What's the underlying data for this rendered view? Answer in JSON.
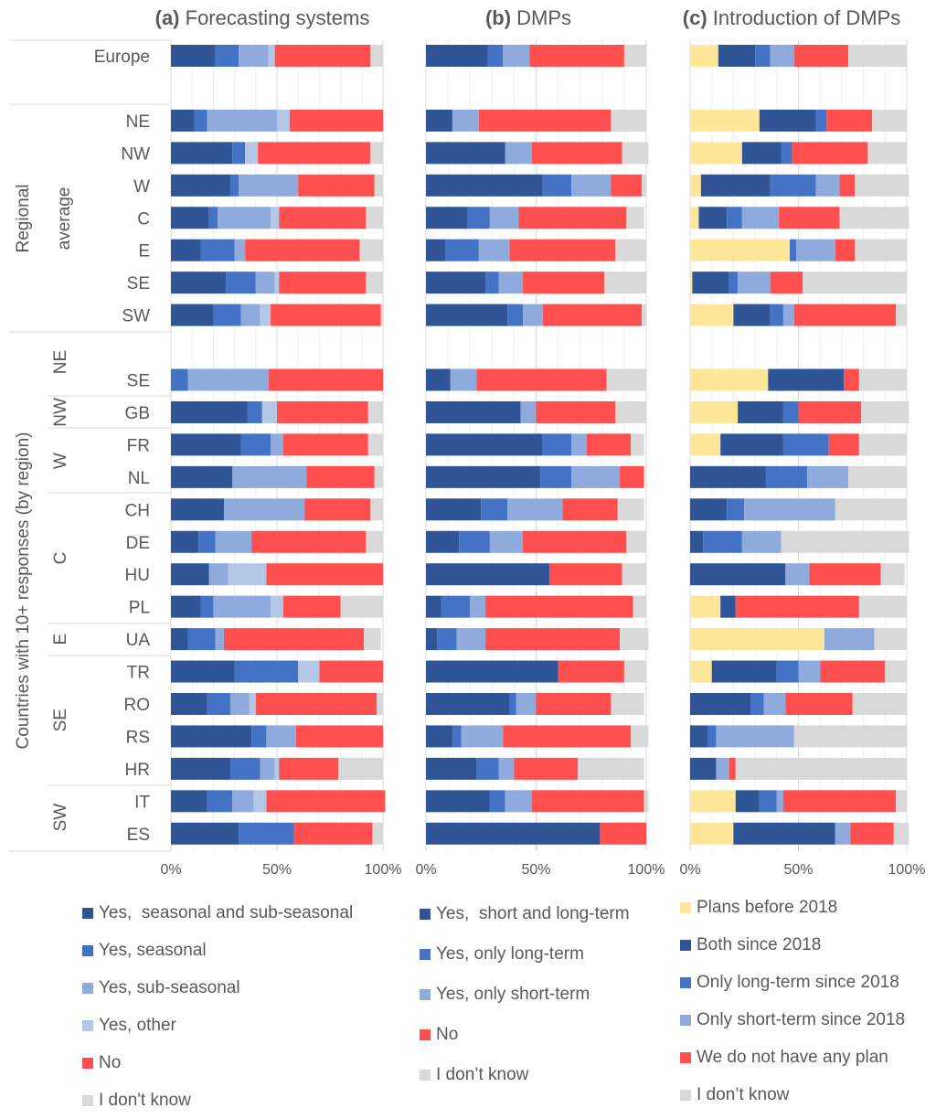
{
  "chart_data": [
    {
      "type": "bar",
      "orientation": "horizontal",
      "stacked": "percent",
      "title_prefix": "(a)",
      "title": "Forecasting systems",
      "xlim": [
        0,
        100
      ],
      "xticks": [
        "0%",
        "50%",
        "100%"
      ],
      "grid": true,
      "legend_position": "bottom",
      "series": [
        {
          "name": "Yes,  seasonal and sub-seasonal",
          "color": "#2F5597",
          "values": [
            21,
            11,
            29,
            28,
            18,
            14,
            26,
            20,
            0,
            36,
            33,
            29,
            25,
            13,
            18,
            14,
            8,
            30,
            17,
            38,
            28,
            17,
            32
          ]
        },
        {
          "name": "Yes, seasonal",
          "color": "#4472C4",
          "values": [
            11,
            6,
            6,
            4,
            4,
            16,
            14,
            13,
            8,
            7,
            14,
            0,
            0,
            8,
            0,
            6,
            13,
            30,
            11,
            7,
            14,
            12,
            26
          ]
        },
        {
          "name": "Yes, sub-seasonal",
          "color": "#8FAADC",
          "values": [
            14,
            33,
            0,
            28,
            25,
            5,
            9,
            9,
            38,
            0,
            6,
            35,
            38,
            17,
            9,
            27,
            4,
            0,
            9,
            14,
            7,
            10,
            0
          ]
        },
        {
          "name": "Yes, other",
          "color": "#B4C7E7",
          "values": [
            3,
            6,
            6,
            0,
            4,
            0,
            2,
            5,
            0,
            7,
            0,
            0,
            0,
            0,
            18,
            6,
            0,
            10,
            3,
            0,
            2,
            6,
            0
          ]
        },
        {
          "name": "No",
          "color": "#FF4F4F",
          "values": [
            45,
            44,
            53,
            36,
            41,
            54,
            41,
            52,
            54,
            43,
            40,
            32,
            31,
            54,
            55,
            27,
            66,
            30,
            57,
            41,
            28,
            56,
            37
          ]
        },
        {
          "name": "I don't know",
          "color": "#D9D9D9",
          "values": [
            6,
            0,
            6,
            4,
            8,
            11,
            8,
            1,
            0,
            7,
            7,
            4,
            6,
            8,
            0,
            20,
            8,
            0,
            3,
            0,
            21,
            0,
            5
          ]
        }
      ]
    },
    {
      "type": "bar",
      "orientation": "horizontal",
      "stacked": "percent",
      "title_prefix": "(b)",
      "title": "DMPs",
      "xlim": [
        0,
        100
      ],
      "xticks": [
        "0%",
        "50%",
        "100%"
      ],
      "grid": true,
      "legend_position": "bottom",
      "series": [
        {
          "name": "Yes,  short and long-term",
          "color": "#2F5597",
          "values": [
            28,
            12,
            36,
            53,
            19,
            9,
            27,
            37,
            11,
            43,
            53,
            52,
            25,
            15,
            56,
            7,
            5,
            60,
            38,
            12,
            23,
            29,
            79
          ]
        },
        {
          "name": "Yes, only long-term",
          "color": "#4472C4",
          "values": [
            7,
            0,
            0,
            13,
            10,
            15,
            6,
            7,
            0,
            0,
            13,
            14,
            12,
            14,
            0,
            13,
            9,
            0,
            3,
            4,
            10,
            7,
            0
          ]
        },
        {
          "name": "Yes, only short-term",
          "color": "#8FAADC",
          "values": [
            12,
            12,
            12,
            18,
            13,
            14,
            11,
            9,
            12,
            7,
            7,
            22,
            25,
            15,
            0,
            7,
            13,
            0,
            9,
            19,
            7,
            12,
            0
          ]
        },
        {
          "name": "No",
          "color": "#FF4F4F",
          "values": [
            43,
            60,
            41,
            14,
            49,
            48,
            37,
            45,
            59,
            36,
            20,
            11,
            25,
            47,
            33,
            67,
            61,
            30,
            34,
            58,
            29,
            51,
            21
          ]
        },
        {
          "name": "I don’t know",
          "color": "#D9D9D9",
          "values": [
            10,
            16,
            12,
            2,
            8,
            14,
            19,
            2,
            18,
            14,
            6,
            0,
            12,
            9,
            11,
            6,
            13,
            10,
            15,
            8,
            30,
            2,
            0
          ]
        }
      ]
    },
    {
      "type": "bar",
      "orientation": "horizontal",
      "stacked": "percent",
      "title_prefix": "(c)",
      "title": "Introduction of DMPs",
      "xlim": [
        0,
        100
      ],
      "xticks": [
        "0%",
        "50%",
        "100%"
      ],
      "grid": true,
      "legend_position": "bottom",
      "series": [
        {
          "name": "Plans before 2018",
          "color": "#FFE699",
          "values": [
            13,
            32,
            24,
            5,
            4,
            46,
            1,
            20,
            36,
            22,
            14,
            0,
            0,
            0,
            0,
            14,
            62,
            10,
            0,
            0,
            0,
            21,
            20
          ]
        },
        {
          "name": "Both since 2018",
          "color": "#2F5597",
          "values": [
            17,
            26,
            18,
            32,
            13,
            0,
            17,
            17,
            35,
            21,
            29,
            35,
            17,
            6,
            44,
            7,
            0,
            30,
            28,
            8,
            12,
            11,
            47
          ]
        },
        {
          "name": "Only long-term since 2018",
          "color": "#4472C4",
          "values": [
            7,
            5,
            5,
            21,
            7,
            3,
            4,
            6,
            0,
            7,
            21,
            19,
            8,
            18,
            0,
            0,
            0,
            10,
            6,
            4,
            0,
            8,
            0
          ]
        },
        {
          "name": "Only short-term since 2018",
          "color": "#8FAADC",
          "values": [
            11,
            0,
            0,
            11,
            17,
            18,
            15,
            5,
            0,
            0,
            0,
            19,
            42,
            18,
            11,
            0,
            23,
            10,
            10,
            36,
            6,
            3,
            7
          ]
        },
        {
          "name": "We do not have any plan",
          "color": "#FF4F4F",
          "values": [
            25,
            21,
            35,
            7,
            28,
            9,
            15,
            47,
            7,
            29,
            14,
            0,
            0,
            0,
            33,
            57,
            0,
            30,
            31,
            0,
            3,
            52,
            20
          ]
        },
        {
          "name": "I don’t know",
          "color": "#D9D9D9",
          "values": [
            27,
            16,
            18,
            25,
            32,
            24,
            48,
            5,
            22,
            22,
            22,
            27,
            33,
            59,
            11,
            22,
            15,
            10,
            25,
            52,
            79,
            5,
            7
          ]
        }
      ]
    }
  ],
  "categories": [
    "Europe",
    "NE",
    "NW",
    "W",
    "C",
    "E",
    "SE",
    "SW",
    "SE",
    "GB",
    "FR",
    "NL",
    "CH",
    "DE",
    "HU",
    "PL",
    "UA",
    "TR",
    "RO",
    "RS",
    "HR",
    "IT",
    "ES"
  ],
  "category_groups": {
    "outer": [
      {
        "label": "Regional",
        "sub": "average",
        "from": "NE",
        "rows": [
          1,
          7
        ]
      },
      {
        "label": "Countries with 10+ responses (by region)",
        "rows": [
          8,
          22
        ]
      }
    ],
    "country_regions": [
      {
        "label": "NE",
        "rows": [
          8,
          8
        ]
      },
      {
        "label": "NW",
        "rows": [
          9,
          9
        ]
      },
      {
        "label": "W",
        "rows": [
          10,
          11
        ]
      },
      {
        "label": "C",
        "rows": [
          12,
          15
        ]
      },
      {
        "label": "E",
        "rows": [
          16,
          16
        ]
      },
      {
        "label": "SE",
        "rows": [
          17,
          20
        ]
      },
      {
        "label": "SW",
        "rows": [
          21,
          22
        ]
      }
    ]
  }
}
